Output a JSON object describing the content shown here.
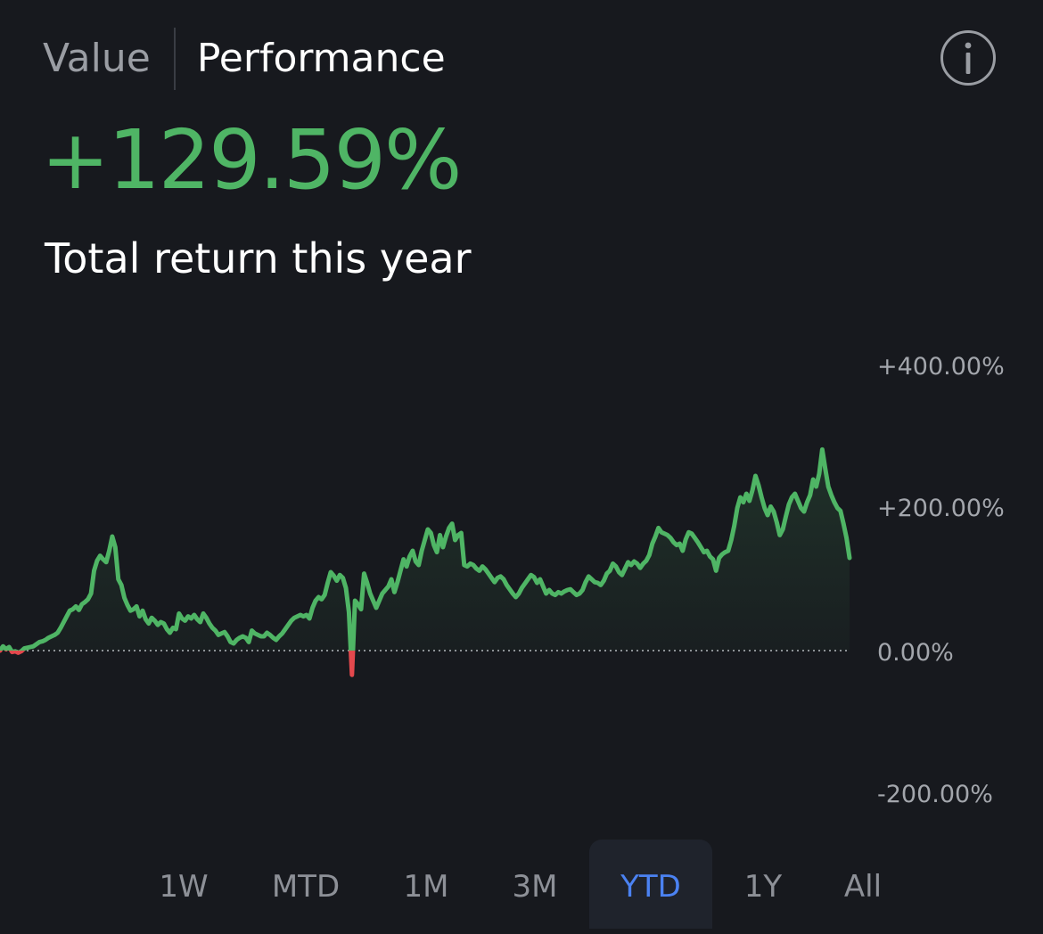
{
  "header": {
    "tabs": [
      {
        "label": "Value",
        "active": false
      },
      {
        "label": "Performance",
        "active": true
      }
    ],
    "info_icon": "info-circle-icon"
  },
  "summary": {
    "return_value": "+129.59%",
    "caption": "Total return this year"
  },
  "chart_data": {
    "type": "line",
    "ylim": [
      -200,
      400
    ],
    "y_ticks": [
      "+400.00%",
      "+200.00%",
      "0.00%",
      "-200.00%"
    ],
    "baseline": 0,
    "colors": {
      "positive": "#4fb565",
      "negative": "#e4484d"
    },
    "values": [
      0,
      6,
      2,
      5,
      -2,
      -1,
      -3,
      -1,
      3,
      4,
      5,
      6,
      9,
      12,
      13,
      15,
      18,
      20,
      22,
      25,
      32,
      40,
      48,
      56,
      58,
      62,
      57,
      65,
      68,
      72,
      80,
      112,
      126,
      133,
      128,
      124,
      140,
      160,
      145,
      100,
      92,
      74,
      64,
      56,
      58,
      62,
      48,
      56,
      44,
      38,
      46,
      42,
      36,
      40,
      38,
      30,
      25,
      32,
      30,
      52,
      45,
      42,
      48,
      45,
      50,
      44,
      40,
      52,
      46,
      38,
      32,
      28,
      22,
      24,
      26,
      20,
      12,
      10,
      15,
      18,
      20,
      18,
      12,
      28,
      24,
      22,
      20,
      20,
      25,
      22,
      18,
      15,
      20,
      24,
      30,
      36,
      42,
      46,
      48,
      50,
      48,
      50,
      45,
      60,
      70,
      75,
      72,
      78,
      95,
      110,
      105,
      98,
      106,
      102,
      88,
      54,
      -34,
      70,
      65,
      58,
      108,
      95,
      80,
      70,
      60,
      70,
      80,
      85,
      90,
      100,
      82,
      96,
      112,
      128,
      118,
      132,
      140,
      125,
      120,
      140,
      155,
      170,
      165,
      148,
      138,
      162,
      145,
      160,
      172,
      178,
      155,
      162,
      165,
      120,
      118,
      122,
      120,
      115,
      112,
      118,
      114,
      108,
      102,
      96,
      102,
      104,
      100,
      92,
      86,
      80,
      75,
      80,
      88,
      94,
      100,
      106,
      103,
      95,
      100,
      90,
      80,
      85,
      80,
      78,
      82,
      80,
      83,
      85,
      86,
      82,
      78,
      80,
      85,
      96,
      104,
      100,
      96,
      95,
      92,
      98,
      108,
      112,
      122,
      118,
      110,
      106,
      115,
      124,
      120,
      125,
      122,
      116,
      122,
      126,
      134,
      150,
      160,
      172,
      166,
      164,
      162,
      158,
      152,
      148,
      150,
      140,
      156,
      166,
      164,
      158,
      152,
      145,
      138,
      140,
      132,
      128,
      112,
      130,
      135,
      138,
      140,
      155,
      175,
      200,
      215,
      208,
      220,
      210,
      225,
      245,
      232,
      215,
      200,
      190,
      202,
      195,
      180,
      162,
      170,
      188,
      205,
      215,
      220,
      210,
      200,
      195,
      208,
      218,
      240,
      230,
      248,
      282,
      255,
      230,
      218,
      208,
      200,
      196,
      178,
      158,
      130
    ]
  },
  "ranges": {
    "items": [
      {
        "label": "1W",
        "selected": false
      },
      {
        "label": "MTD",
        "selected": false
      },
      {
        "label": "1M",
        "selected": false
      },
      {
        "label": "3M",
        "selected": false
      },
      {
        "label": "YTD",
        "selected": true
      },
      {
        "label": "1Y",
        "selected": false
      },
      {
        "label": "All",
        "selected": false
      }
    ]
  }
}
